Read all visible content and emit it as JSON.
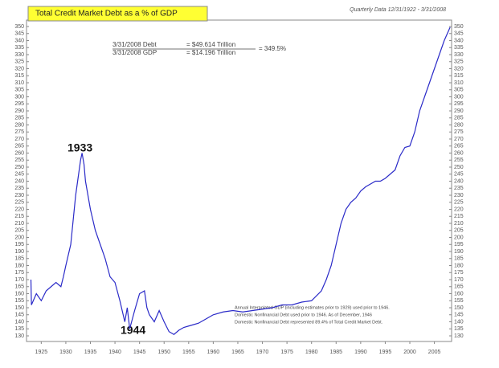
{
  "chart_data": {
    "type": "line",
    "title": "Total Credit Market Debt as a % of GDP",
    "subtitle": "Quarterly Data 12/31/1922 - 3/31/2008",
    "annotations": {
      "debt_label": "3/31/2008 Debt",
      "debt_value": "= $49.614 Trillion",
      "gdp_label": "3/31/2008 GDP",
      "gdp_value": "= $14.196 Trillion",
      "ratio": "= 349.5%",
      "peak": "1933",
      "trough": "1944",
      "note": [
        "Annual Interpolated GDP (including estimates prior to 1929) used prior to 1946.",
        "Domestic Nonfinancial Debt used prior to 1946. As of December, 1946",
        "Domestic Nonfinancial Debt represented 89.4% of Total Credit Market Debt."
      ]
    },
    "color": "#2b2bc8",
    "x": [
      1922.9,
      1923,
      1924,
      1925,
      1926,
      1927,
      1928,
      1929,
      1929.5,
      1930,
      1931,
      1932,
      1933,
      1933.3,
      1933.7,
      1934,
      1935,
      1936,
      1937,
      1938,
      1939,
      1940,
      1941,
      1942,
      1942.5,
      1943,
      1944,
      1945,
      1946,
      1946.5,
      1947,
      1948,
      1949,
      1950,
      1951,
      1952,
      1953,
      1954,
      1955,
      1956,
      1957,
      1958,
      1959,
      1960,
      1962,
      1964,
      1966,
      1968,
      1970,
      1972,
      1974,
      1976,
      1978,
      1980,
      1982,
      1983,
      1984,
      1985,
      1986,
      1987,
      1988,
      1989,
      1990,
      1991,
      1992,
      1993,
      1994,
      1995,
      1996,
      1997,
      1998,
      1999,
      2000,
      2001,
      2002,
      2003,
      2004,
      2005,
      2006,
      2007,
      2008.2
    ],
    "values": [
      170,
      152,
      160,
      155,
      162,
      165,
      168,
      165,
      172,
      180,
      195,
      230,
      255,
      260,
      252,
      240,
      220,
      205,
      195,
      185,
      172,
      168,
      155,
      140,
      150,
      135,
      148,
      160,
      162,
      150,
      145,
      140,
      148,
      140,
      133,
      131,
      134,
      136,
      137,
      138,
      139,
      141,
      143,
      145,
      147,
      148,
      147,
      148,
      149,
      150,
      152,
      152,
      154,
      155,
      162,
      170,
      180,
      195,
      210,
      220,
      225,
      228,
      233,
      236,
      238,
      240,
      240,
      242,
      245,
      248,
      258,
      264,
      265,
      275,
      290,
      300,
      310,
      320,
      330,
      340,
      349.5
    ],
    "xlim": [
      1922,
      2008.5
    ],
    "xticks": [
      1925,
      1930,
      1935,
      1940,
      1945,
      1950,
      1955,
      1960,
      1965,
      1970,
      1975,
      1980,
      1985,
      1990,
      1995,
      2000,
      2005
    ],
    "ylim": [
      130,
      350
    ],
    "yticks": [
      130,
      135,
      140,
      145,
      150,
      155,
      160,
      165,
      170,
      175,
      180,
      185,
      190,
      195,
      200,
      205,
      210,
      215,
      220,
      225,
      230,
      235,
      240,
      245,
      250,
      255,
      260,
      265,
      270,
      275,
      280,
      285,
      290,
      295,
      300,
      305,
      310,
      315,
      320,
      325,
      330,
      335,
      340,
      345,
      350
    ],
    "y2lim": [
      130,
      350
    ],
    "y2ticks": [
      130,
      135,
      140,
      145,
      150,
      155,
      160,
      165,
      170,
      175,
      180,
      185,
      190,
      195,
      200,
      205,
      210,
      215,
      220,
      225,
      230,
      235,
      240,
      245,
      250,
      255,
      260,
      265,
      270,
      275,
      280,
      285,
      290,
      295,
      300,
      305,
      310,
      315,
      320,
      325,
      330,
      335,
      340,
      345,
      350
    ]
  }
}
